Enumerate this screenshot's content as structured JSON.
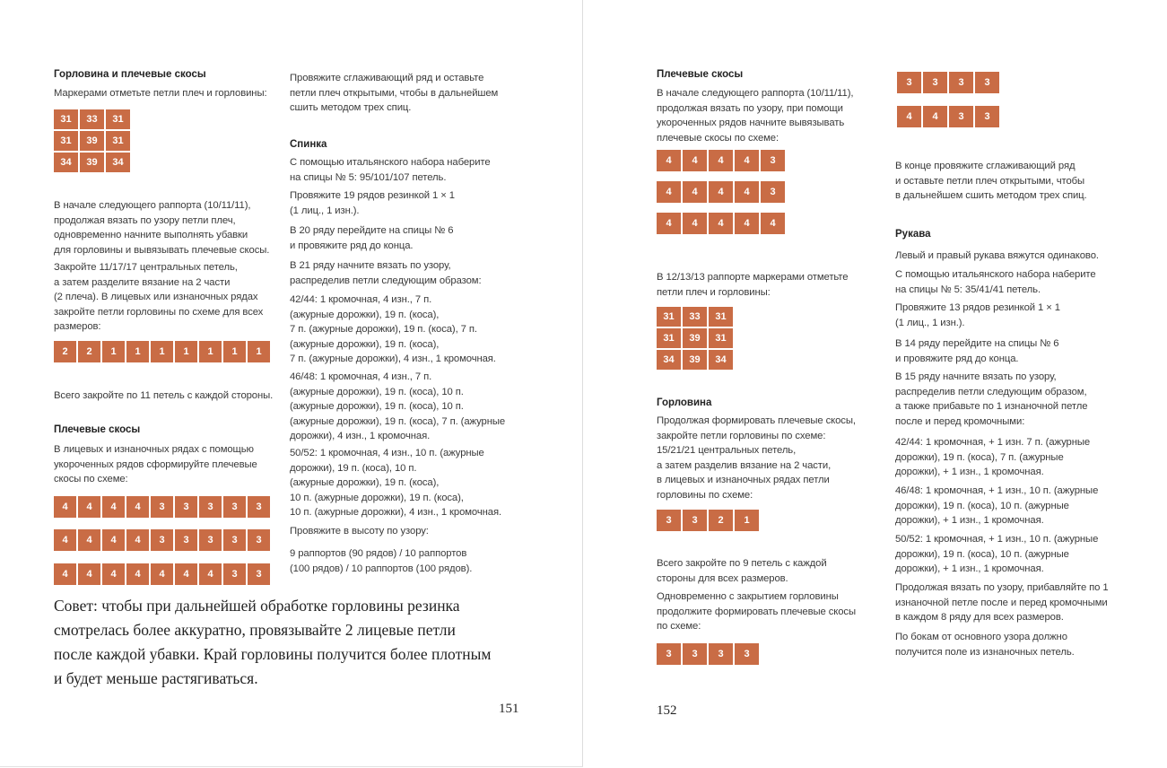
{
  "accent_color": "#c96c45",
  "left_page": {
    "page_number": "151",
    "col1": {
      "heading1": "Горловина и плечевые скосы",
      "p1": "Маркерами отметьте петли плеч и горловины:",
      "grid1": [
        "31",
        "33",
        "31",
        "31",
        "39",
        "31",
        "34",
        "39",
        "34"
      ],
      "p2": "В начале следующего раппорта (10/11/11),\nпродолжая вязать по узору петли плеч,\nодновременно начните выполнять убавки\nдля горловины и вывязывать плечевые скосы.",
      "p3": "Закройте 11/17/17 центральных петель,\nа затем разделите вязание на 2 части\n(2 плеча). В лицевых или изнаночных рядах\nзакройте петли горловины по схеме для всех\nразмеров:",
      "row1": [
        "2",
        "2",
        "1",
        "1",
        "1",
        "1",
        "1",
        "1",
        "1"
      ],
      "p4": "Всего закройте по 11 петель с каждой стороны.",
      "heading2": "Плечевые скосы",
      "p5": "В лицевых и изнаночных рядах с помощью\nукороченных рядов сформируйте плечевые\nскосы по схеме:",
      "rows": [
        [
          "4",
          "4",
          "4",
          "4",
          "3",
          "3",
          "3",
          "3",
          "3"
        ],
        [
          "4",
          "4",
          "4",
          "4",
          "3",
          "3",
          "3",
          "3",
          "3"
        ],
        [
          "4",
          "4",
          "4",
          "4",
          "4",
          "4",
          "4",
          "3",
          "3"
        ]
      ]
    },
    "col2": {
      "p1": "Провяжите сглаживающий ряд и оставьте\nпетли плеч открытыми, чтобы в дальнейшем\nсшить методом трех спиц.",
      "heading": "Спинка",
      "p2": "С помощью итальянского набора наберите\nна спицы № 5: 95/101/107 петель.",
      "p3": "Провяжите 19 рядов резинкой 1 × 1\n(1 лиц., 1 изн.).",
      "p4": "В 20 ряду перейдите на спицы № 6\nи провяжите ряд до конца.",
      "p5": "В 21 ряду начните вязать по узору,\nраспределив петли следующим образом:",
      "p6": "42/44: 1 кромочная, 4 изн., 7 п.\n(ажурные дорожки), 19 п. (коса),\n7 п. (ажурные дорожки), 19 п. (коса), 7 п.\n(ажурные дорожки), 19 п. (коса),\n7 п. (ажурные дорожки), 4 изн., 1 кромочная.",
      "p7": "46/48: 1 кромочная, 4 изн., 7 п.\n(ажурные дорожки), 19 п. (коса), 10 п.\n(ажурные дорожки), 19 п. (коса), 10 п.\n(ажурные дорожки), 19 п. (коса), 7 п. (ажурные\nдорожки), 4 изн., 1 кромочная.",
      "p8": "50/52: 1 кромочная, 4 изн., 10 п. (ажурные\nдорожки), 19 п. (коса), 10 п.\n(ажурные дорожки), 19 п. (коса),\n10 п. (ажурные дорожки), 19 п. (коса),\n10 п. (ажурные дорожки), 4 изн., 1 кромочная.",
      "p9": "Провяжите в высоту по узору:",
      "p10": "9 раппортов (90 рядов) / 10 раппортов\n(100 рядов) / 10 раппортов (100 рядов)."
    },
    "tip": "Совет: чтобы при дальнейшей обработке горловины резинка\nсмотрелась более аккуратно, провязывайте 2 лицевые петли\nпосле каждой убавки. Край горловины получится более плотным\nи будет меньше растягиваться."
  },
  "right_page": {
    "page_number": "152",
    "col1": {
      "heading1": "Плечевые скосы",
      "p1": "В начале следующего раппорта (10/11/11),\nпродолжая вязать по узору, при помощи\nукороченных рядов начните вывязывать\nплечевые скосы по схеме:",
      "rows": [
        [
          "4",
          "4",
          "4",
          "4",
          "3"
        ],
        [
          "4",
          "4",
          "4",
          "4",
          "3"
        ],
        [
          "4",
          "4",
          "4",
          "4",
          "4"
        ]
      ],
      "p2": "В 12/13/13 раппорте маркерами отметьте\nпетли плеч и горловины:",
      "grid1": [
        "31",
        "33",
        "31",
        "31",
        "39",
        "31",
        "34",
        "39",
        "34"
      ],
      "heading2": "Горловина",
      "p3": "Продолжая формировать плечевые скосы,\nзакройте петли горловины по схеме:\n15/21/21 центральных петель,\nа затем разделив вязание на 2 части,\nв лицевых и изнаночных рядах петли\nгорловины по схеме:",
      "row1": [
        "3",
        "3",
        "2",
        "1"
      ],
      "p4": "Всего закройте по 9 петель с каждой\nстороны для всех размеров.",
      "p5": "Одновременно с закрытием горловины\nпродолжите формировать плечевые скосы\nпо схеме:",
      "row2": [
        "3",
        "3",
        "3",
        "3"
      ]
    },
    "col2": {
      "rows": [
        [
          "3",
          "3",
          "3",
          "3"
        ],
        [
          "4",
          "4",
          "3",
          "3"
        ]
      ],
      "p1": "В конце провяжите сглаживающий ряд\nи оставьте петли плеч открытыми, чтобы\nв дальнейшем сшить методом трех спиц.",
      "heading": "Рукава",
      "p2": "Левый и правый рукава вяжутся одинаково.",
      "p3": "С помощью итальянского набора наберите\nна спицы № 5: 35/41/41 петель.",
      "p4": "Провяжите 13 рядов резинкой 1 × 1\n(1 лиц., 1 изн.).",
      "p5": "В 14 ряду перейдите на спицы № 6\nи провяжите ряд до конца.",
      "p6": "В 15 ряду начните вязать по узору,\nраспределив петли следующим образом,\nа также прибавьте по 1 изнаночной петле\nпосле и перед кромочными:",
      "p7": "42/44: 1 кромочная, + 1 изн. 7 п. (ажурные\nдорожки), 19 п. (коса), 7 п. (ажурные\nдорожки), + 1 изн., 1 кромочная.",
      "p8": "46/48: 1 кромочная, + 1 изн., 10 п. (ажурные\nдорожки), 19 п. (коса), 10 п. (ажурные\nдорожки), + 1 изн., 1 кромочная.",
      "p9": "50/52: 1 кромочная, + 1 изн., 10 п. (ажурные\nдорожки), 19 п. (коса), 10 п. (ажурные\nдорожки), + 1 изн., 1 кромочная.",
      "p10": "Продолжая вязать по узору, прибавляйте по 1\nизнаночной петле после и перед кромочными\nв каждом 8 ряду для всех размеров.",
      "p11": "По бокам от основного узора должно\nполучится поле из изнаночных петель."
    }
  }
}
